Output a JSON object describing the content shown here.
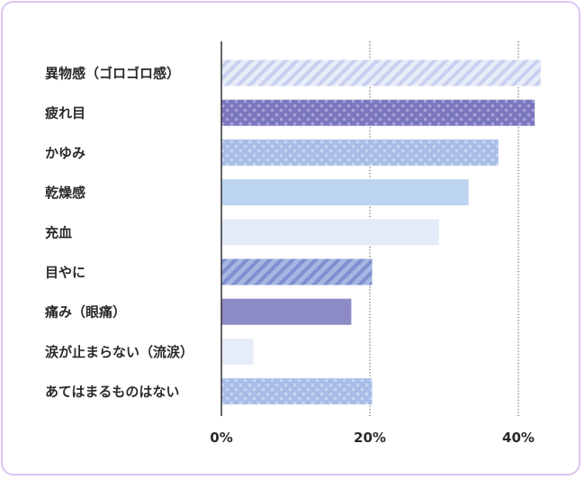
{
  "chart_data": {
    "type": "bar",
    "orientation": "horizontal",
    "categories": [
      "異物感（ゴロゴロ感）",
      "疲れ目",
      "かゆみ",
      "乾燥感",
      "充血",
      "目やに",
      "痛み（眼痛）",
      "涙が止まらない（流涙）",
      "あてはまるものはない"
    ],
    "values": [
      43,
      42.2,
      37.3,
      33.3,
      29.3,
      20.3,
      17.5,
      4.3,
      20.3
    ],
    "xlim": [
      0,
      43
    ],
    "xticks": [
      {
        "value": 0,
        "label": "0%"
      },
      {
        "value": 20,
        "label": "20%"
      },
      {
        "value": 40,
        "label": "40%"
      }
    ],
    "grid": "dotted vertical lines at 20% and 40%",
    "bar_styles": [
      "stripe-light",
      "dots-dark",
      "dots-mid",
      "solid-lightblue",
      "solid-paleblue",
      "stripe-mid",
      "solid-purple",
      "solid-pale",
      "dots-mid"
    ],
    "colors": {
      "frame": "#d9c6ee",
      "axis": "#333333",
      "stripe_light_bg": "#e8ecf9",
      "stripe_light_fg": "#c7d0ee",
      "dots_dark_bg": "#7b77bf",
      "dots_dark_fg": "#a6a3d8",
      "dots_mid_bg": "#a8bde6",
      "dots_mid_fg": "#c7d5f2",
      "solid_lightblue": "#bcd4ef",
      "solid_paleblue": "#e3ebf8",
      "stripe_mid_bg": "#a6b6e3",
      "stripe_mid_fg": "#7f8fcf",
      "solid_purple": "#8d8bc6",
      "solid_pale": "#e6ecf8"
    }
  }
}
